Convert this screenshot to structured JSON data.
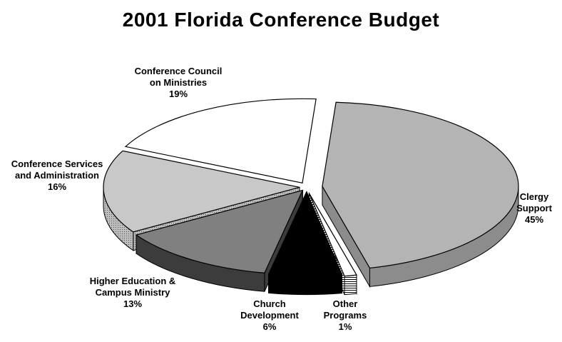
{
  "chart_data": {
    "type": "pie",
    "title": "2001 Florida Conference Budget",
    "slices": [
      {
        "label_lines": [
          "Clergy",
          "Support"
        ],
        "value": 45,
        "value_label": "45%",
        "color": "#b4b4b4",
        "side_color": "#8c8c8c"
      },
      {
        "label_lines": [
          "Other",
          "Programs"
        ],
        "value": 1,
        "value_label": "1%",
        "color": "#ffffff",
        "side_color": "#9a9a9a"
      },
      {
        "label_lines": [
          "Church",
          "Development"
        ],
        "value": 6,
        "value_label": "6%",
        "color": "#000000",
        "side_color": "#000000"
      },
      {
        "label_lines": [
          "Higher Education &",
          "Campus Ministry"
        ],
        "value": 13,
        "value_label": "13%",
        "color": "#808080",
        "side_color": "#3c3c3c"
      },
      {
        "label_lines": [
          "Conference Services",
          "and Administration"
        ],
        "value": 16,
        "value_label": "16%",
        "color": "#c8c8c8",
        "side_color": "#9a9a9a"
      },
      {
        "label_lines": [
          "Conference Council",
          "on Ministries"
        ],
        "value": 19,
        "value_label": "19%",
        "color": "#ffffff",
        "side_color": "#9a9a9a"
      }
    ],
    "legend": "none"
  }
}
